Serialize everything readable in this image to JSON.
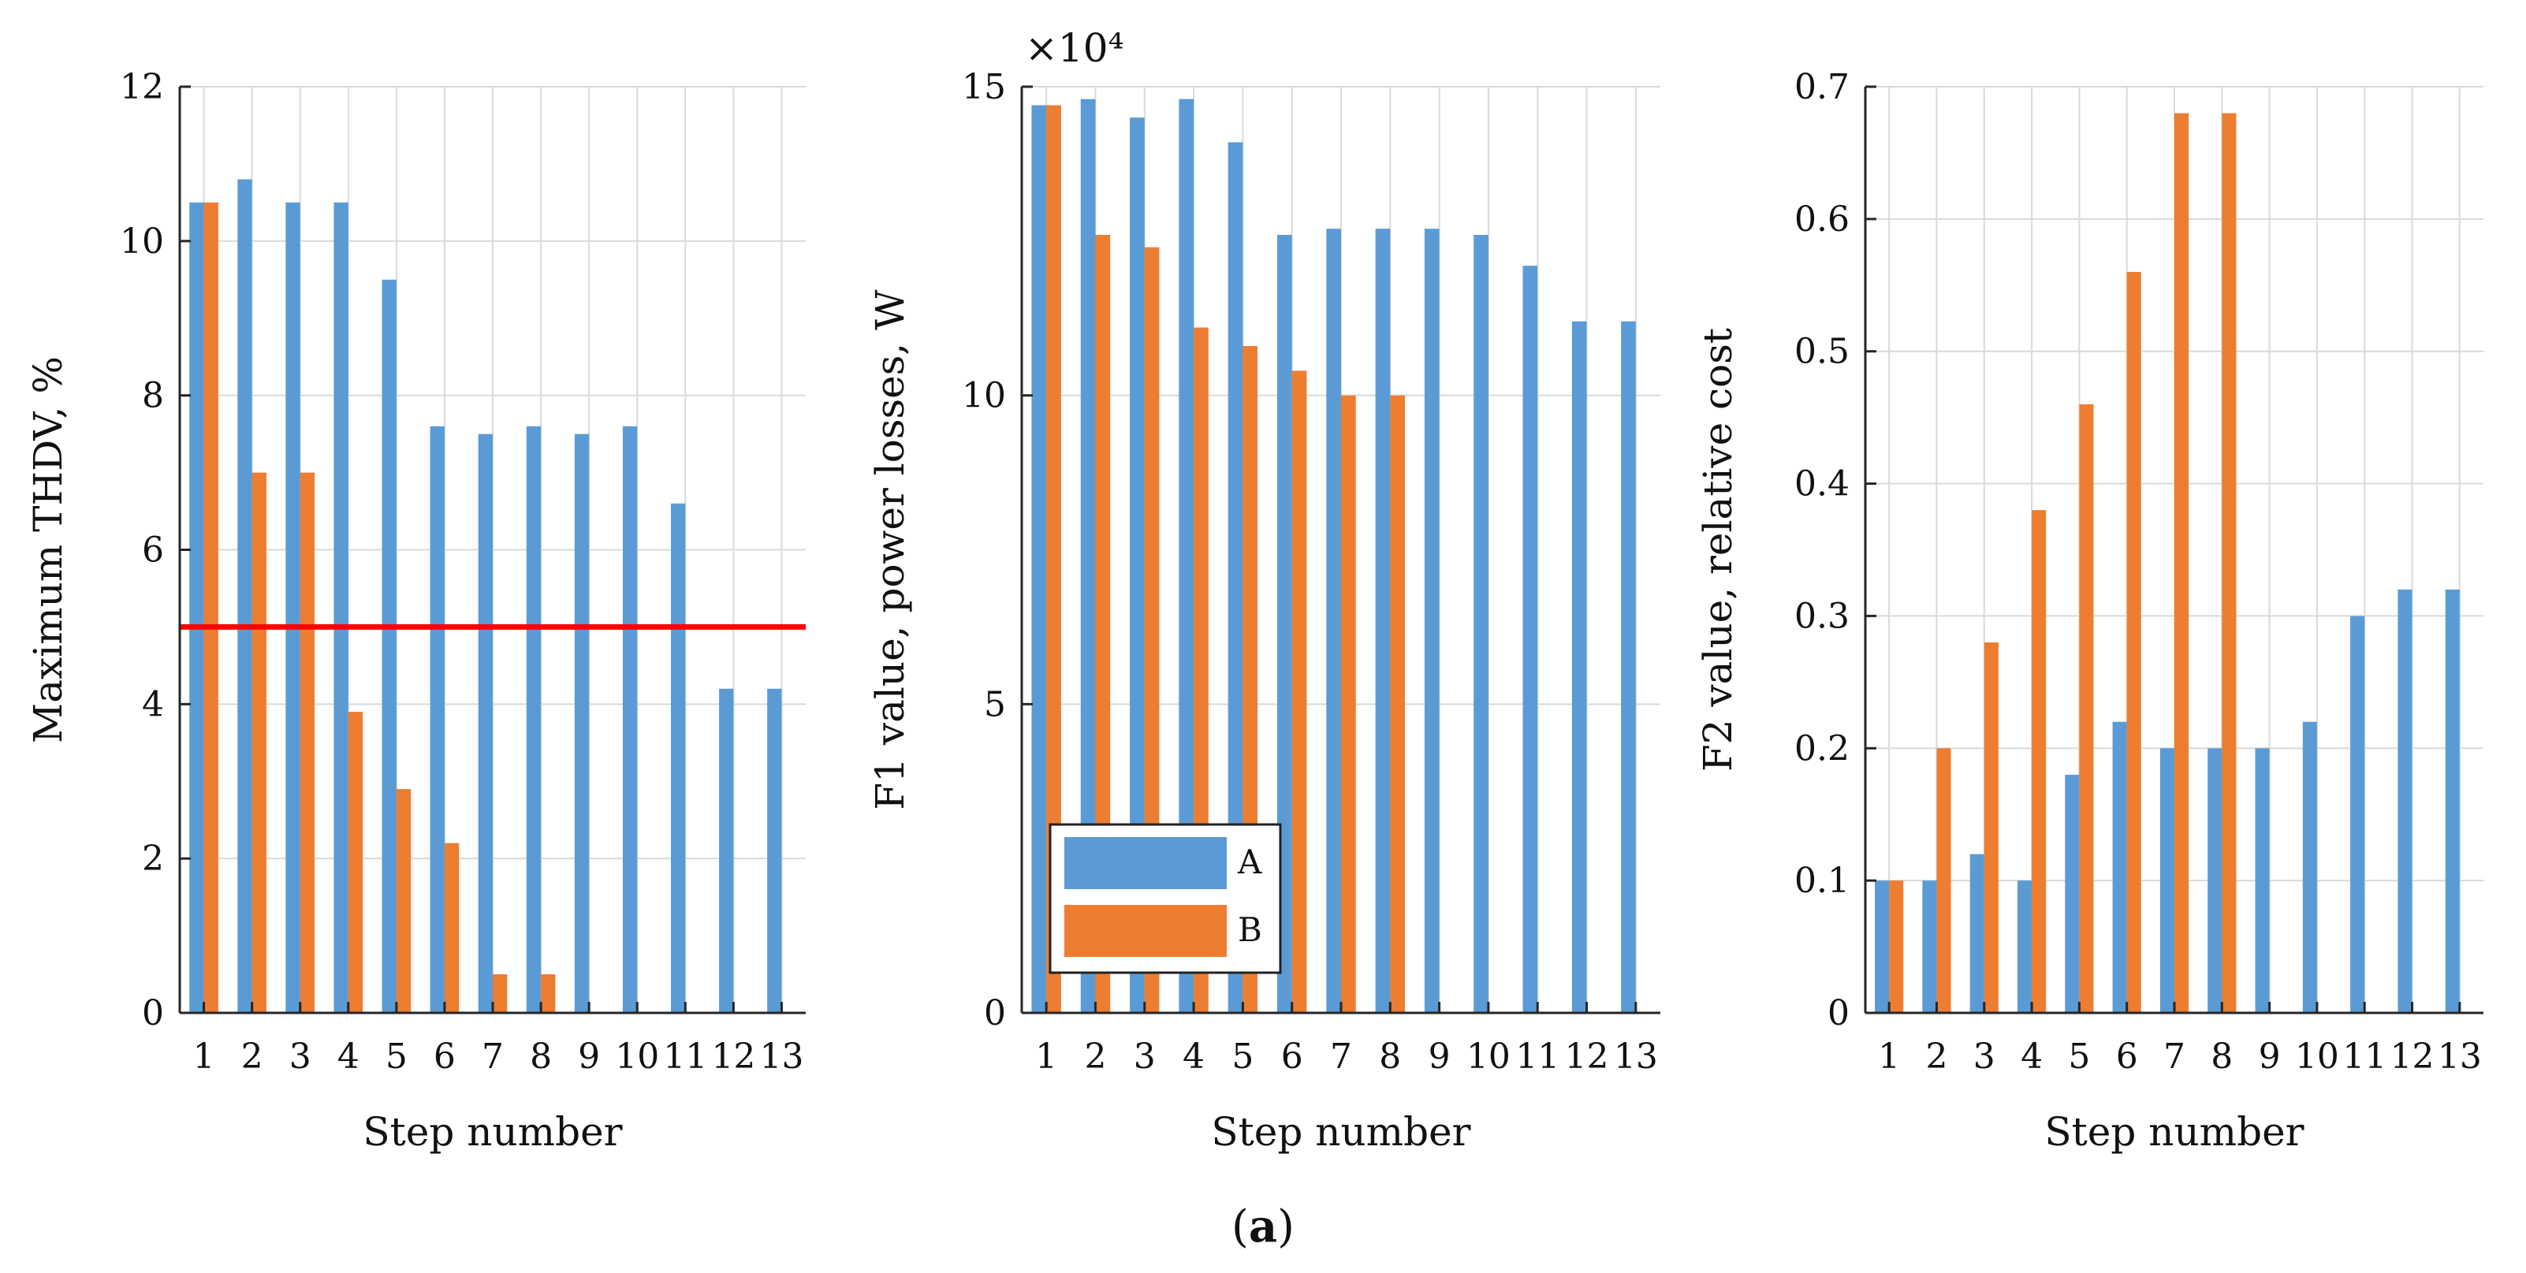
{
  "caption": {
    "prefix": "(",
    "letter": "a",
    "suffix": ")"
  },
  "colors": {
    "A": "#5b9bd5",
    "B": "#ed7d31",
    "threshold": "#ff0000",
    "grid": "#d9d9d9",
    "axis": "#262626"
  },
  "legend": {
    "entries": [
      "A",
      "B"
    ],
    "placement": "bottom-left of middle panel"
  },
  "chart_data": [
    {
      "type": "bar",
      "xlabel": "Step number",
      "ylabel": "Maximum THDV, %",
      "categories": [
        "1",
        "2",
        "3",
        "4",
        "5",
        "6",
        "7",
        "8",
        "9",
        "10",
        "11",
        "12",
        "13"
      ],
      "ylim": [
        0,
        12
      ],
      "yticks": [
        0,
        2,
        4,
        6,
        8,
        10,
        12
      ],
      "ytick_labels": [
        "0",
        "2",
        "4",
        "6",
        "8",
        "10",
        "12"
      ],
      "series": [
        {
          "name": "A",
          "values": [
            10.5,
            10.8,
            10.5,
            10.5,
            9.5,
            7.6,
            7.5,
            7.6,
            7.5,
            7.6,
            6.6,
            4.2,
            4.2
          ]
        },
        {
          "name": "B",
          "values": [
            10.5,
            7.0,
            7.0,
            3.9,
            2.9,
            2.2,
            0.5,
            0.5,
            null,
            null,
            null,
            null,
            null
          ]
        }
      ],
      "hline": 5,
      "grid": true
    },
    {
      "type": "bar",
      "xlabel": "Step number",
      "ylabel": "F1 value, power losses, W",
      "exponent_label": "×10⁴",
      "categories": [
        "1",
        "2",
        "3",
        "4",
        "5",
        "6",
        "7",
        "8",
        "9",
        "10",
        "11",
        "12",
        "13"
      ],
      "ylim": [
        0,
        15
      ],
      "yticks": [
        0,
        5,
        10,
        15
      ],
      "ytick_labels": [
        "0",
        "5",
        "10",
        "15"
      ],
      "series": [
        {
          "name": "A",
          "values": [
            14.7,
            14.8,
            14.5,
            14.8,
            14.1,
            12.6,
            12.7,
            12.7,
            12.7,
            12.6,
            12.1,
            11.2,
            11.2
          ]
        },
        {
          "name": "B",
          "values": [
            14.7,
            12.6,
            12.4,
            11.1,
            10.8,
            10.4,
            10.0,
            10.0,
            null,
            null,
            null,
            null,
            null
          ]
        }
      ],
      "grid": true
    },
    {
      "type": "bar",
      "xlabel": "Step number",
      "ylabel": "F2 value, relative cost",
      "categories": [
        "1",
        "2",
        "3",
        "4",
        "5",
        "6",
        "7",
        "8",
        "9",
        "10",
        "11",
        "12",
        "13"
      ],
      "ylim": [
        0,
        0.7
      ],
      "yticks": [
        0,
        0.1,
        0.2,
        0.3,
        0.4,
        0.5,
        0.6,
        0.7
      ],
      "ytick_labels": [
        "0",
        "0.1",
        "0.2",
        "0.3",
        "0.4",
        "0.5",
        "0.6",
        "0.7"
      ],
      "series": [
        {
          "name": "A",
          "values": [
            0.1,
            0.1,
            0.12,
            0.1,
            0.18,
            0.22,
            0.2,
            0.2,
            0.2,
            0.22,
            0.3,
            0.32,
            0.32
          ]
        },
        {
          "name": "B",
          "values": [
            0.1,
            0.2,
            0.28,
            0.38,
            0.46,
            0.56,
            0.68,
            0.68,
            null,
            null,
            null,
            null,
            null
          ]
        }
      ],
      "grid": true
    }
  ]
}
